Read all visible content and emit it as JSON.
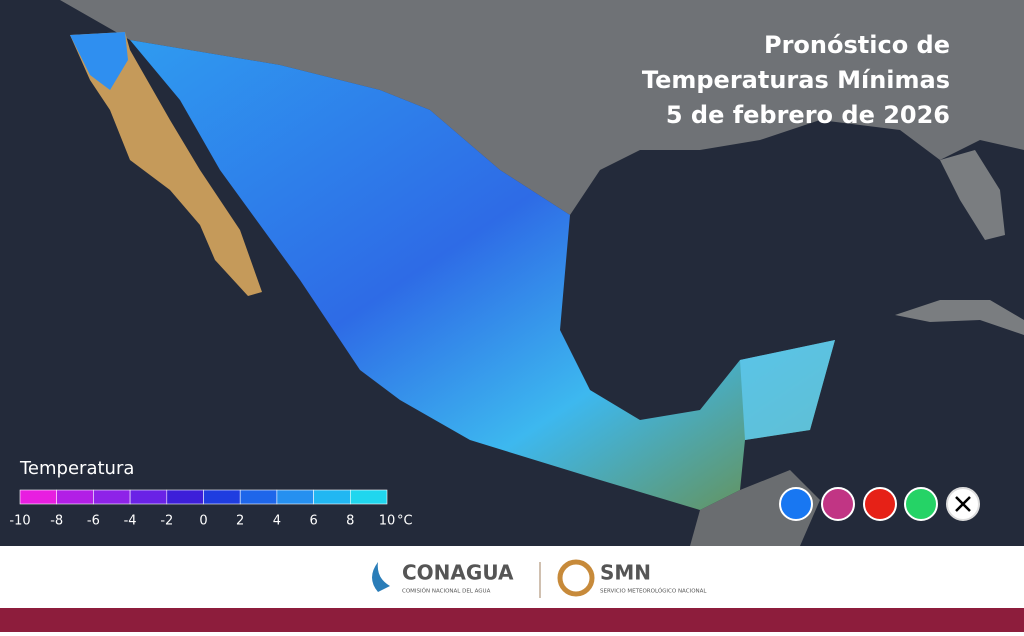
{
  "header": {
    "title_lines": [
      "Pronóstico de",
      "Temperaturas Mínimas",
      "5 de febrero de 2026"
    ]
  },
  "legend": {
    "title": "Temperatura",
    "ticks": [
      "-10",
      "-8",
      "-6",
      "-4",
      "-2",
      "0",
      "2",
      "4",
      "6",
      "8",
      "10"
    ],
    "unit": "°C",
    "colors": [
      "#e81ee0",
      "#b21fe6",
      "#8e23e8",
      "#6a22e6",
      "#3d1fd9",
      "#1f3de0",
      "#1e66ea",
      "#2690f0",
      "#21b7f2",
      "#20d6ee"
    ]
  },
  "footer": {
    "org1": "CONAGUA",
    "org1_sub": "COMISIÓN NACIONAL DEL AGUA",
    "org2": "SMN",
    "org2_sub": "SERVICIO METEOROLÓGICO NACIONAL"
  }
}
